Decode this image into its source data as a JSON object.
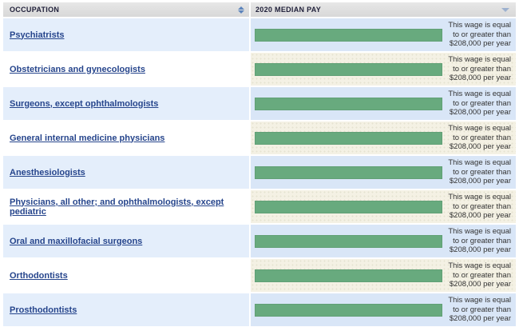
{
  "table": {
    "columns": [
      {
        "label": "OCCUPATION",
        "sort_icon": "sort-up-down"
      },
      {
        "label": "2020 MEDIAN PAY",
        "sort_icon": "sort-down"
      }
    ],
    "wage_note_lines": [
      "This wage is equal",
      "to or greater than",
      "$208,000 per year"
    ],
    "rows": [
      {
        "occupation": "Psychiatrists"
      },
      {
        "occupation": "Obstetricians and gynecologists"
      },
      {
        "occupation": "Surgeons, except ophthalmologists"
      },
      {
        "occupation": "General internal medicine physicians"
      },
      {
        "occupation": "Anesthesiologists"
      },
      {
        "occupation": "Physicians, all other; and ophthalmologists, except pediatric"
      },
      {
        "occupation": "Oral and maxillofacial surgeons"
      },
      {
        "occupation": "Orthodontists"
      },
      {
        "occupation": "Prosthodontists"
      }
    ]
  },
  "colors": {
    "bar-green": "#68aa7e",
    "link-blue": "#26458c",
    "row-blue-right": "#d9e6f7",
    "row-cream": "#f4f1e4",
    "header-text": "#21213a"
  }
}
